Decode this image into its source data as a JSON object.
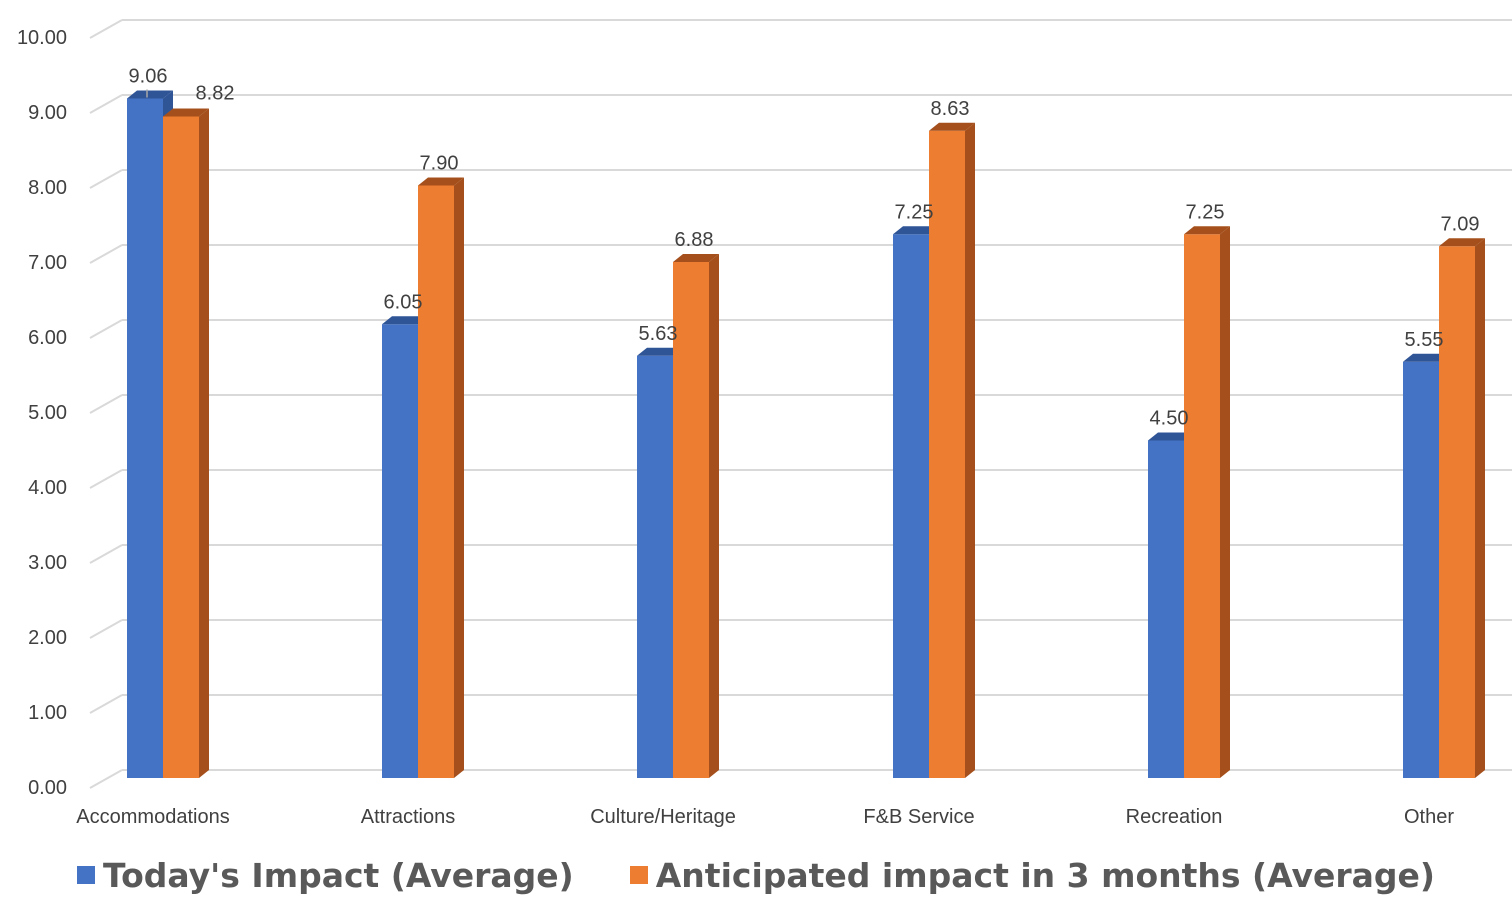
{
  "chart_data": {
    "type": "bar",
    "categories": [
      "Accommodations",
      "Attractions",
      "Culture/Heritage",
      "F&B Service",
      "Recreation",
      "Other"
    ],
    "series": [
      {
        "name": "Today's Impact (Average)",
        "color": "#4472C4",
        "side_color": "#2F5597",
        "values": [
          9.06,
          6.05,
          5.63,
          7.25,
          4.5,
          5.55
        ],
        "labels": [
          "9.06",
          "6.05",
          "5.63",
          "7.25",
          "4.50",
          "5.55"
        ]
      },
      {
        "name": "Anticipated impact in 3 months (Average)",
        "color": "#ED7D31",
        "side_color": "#A5501C",
        "values": [
          8.82,
          7.9,
          6.88,
          8.63,
          7.25,
          7.09
        ],
        "labels": [
          "8.82",
          "7.90",
          "6.88",
          "8.63",
          "7.25",
          "7.09"
        ]
      }
    ],
    "y_ticks": [
      "0.00",
      "1.00",
      "2.00",
      "3.00",
      "4.00",
      "5.00",
      "6.00",
      "7.00",
      "8.00",
      "9.00",
      "10.00"
    ],
    "ylim": [
      0,
      10
    ],
    "grid": true,
    "legend_position": "bottom",
    "title": "",
    "xlabel": "",
    "ylabel": ""
  }
}
